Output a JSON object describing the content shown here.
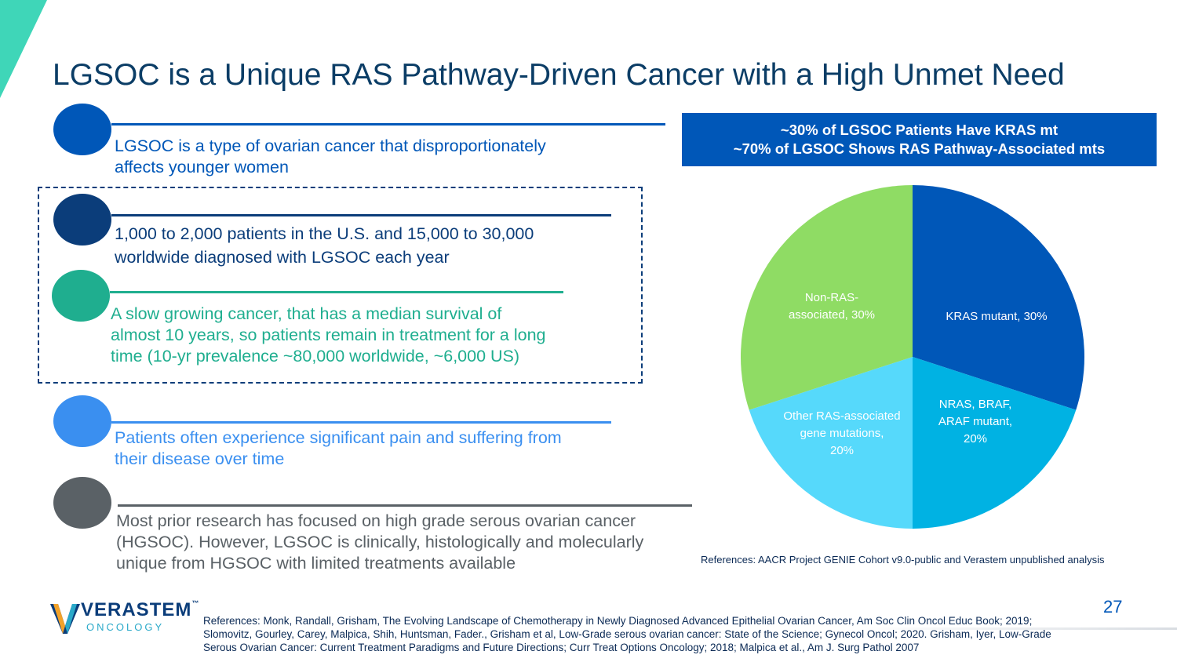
{
  "slide": {
    "title": "LGSOC is a Unique RAS Pathway-Driven Cancer with a High Unmet Need",
    "page_number": "27"
  },
  "bullets": [
    {
      "text_line1": "LGSOC is a type of ovarian cancer that disproportionately",
      "text_line2": "affects younger women",
      "color": "#0057b8"
    },
    {
      "text_line1": "1,000 to 2,000 patients in the U.S. and 15,000 to 30,000",
      "text_line2": "worldwide diagnosed with LGSOC each year",
      "color": "#0b3d7a"
    },
    {
      "text_line1": "A slow growing cancer, that has a median survival of",
      "text_line2": "almost 10 years, so patients remain in treatment for a long",
      "text_line3": "time (10-yr prevalence ~80,000 worldwide, ~6,000 US)",
      "color": "#1fae8f"
    },
    {
      "text_line1": "Patients often experience significant pain and suffering from",
      "text_line2": "their disease over time",
      "color": "#3a8ff0"
    },
    {
      "text_line1": "Most prior research has focused on high grade serous ovarian cancer",
      "text_line2": "(HGSOC). However, LGSOC is clinically, histologically and molecularly",
      "text_line3": "unique from HGSOC with limited treatments available",
      "color": "#5a6166"
    }
  ],
  "banner": {
    "line1": "~30% of LGSOC Patients Have KRAS mt",
    "line2": "~70% of LGSOC Shows RAS Pathway-Associated mts"
  },
  "chart_data": {
    "type": "pie",
    "title": "",
    "slices": [
      {
        "label_lines": [
          "KRAS mutant, 30%"
        ],
        "value": 30,
        "color": "#0057b8"
      },
      {
        "label_lines": [
          "NRAS, BRAF,",
          "ARAF mutant,",
          "20%"
        ],
        "value": 20,
        "color": "#00b2e3"
      },
      {
        "label_lines": [
          "Other RAS-associated",
          "gene mutations,",
          "20%"
        ],
        "value": 20,
        "color": "#56d9fb"
      },
      {
        "label_lines": [
          "Non-RAS-",
          "associated, 30%"
        ],
        "value": 30,
        "color": "#8fdc64"
      }
    ]
  },
  "pie_reference": "References: AACR Project GENIE Cohort v9.0-public and Verastem unpublished analysis",
  "footer_references": {
    "line1": "References: Monk, Randall, Grisham, The Evolving Landscape of Chemotherapy in Newly Diagnosed Advanced Epithelial Ovarian Cancer, Am Soc Clin Oncol Educ Book; 2019;",
    "line2": "Slomovitz, Gourley, Carey, Malpica, Shih, Huntsman, Fader., Grisham et al, Low-Grade serous ovarian cancer: State of the Science; Gynecol Oncol; 2020. Grisham, Iyer, Low-Grade",
    "line3": "Serous Ovarian Cancer: Current Treatment Paradigms and Future Directions; Curr Treat Options Oncology; 2018; Malpica et al., Am J. Surg Pathol 2007"
  },
  "logo": {
    "name": "VERASTEM",
    "trademark": "™",
    "sub": "ONCOLOGY"
  },
  "colors": {
    "title": "#0b3d66",
    "accent": "#0057b8",
    "corner": "#3fd6b8"
  }
}
